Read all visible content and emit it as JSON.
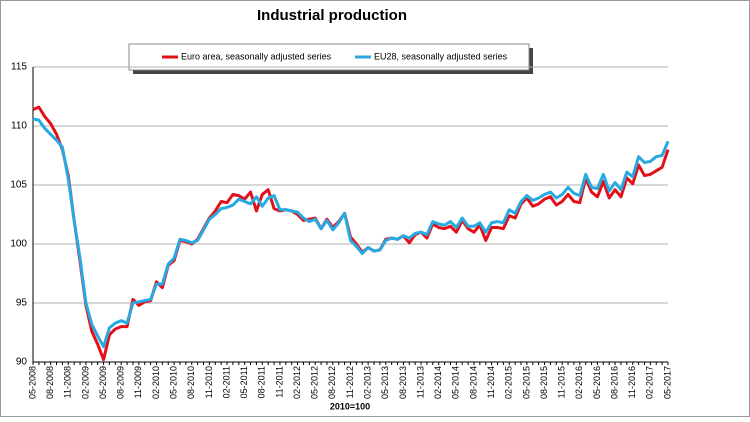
{
  "chart_data": {
    "type": "line",
    "title": "Industrial production",
    "x_label": "2010=100",
    "categories": [
      "05-2008",
      null,
      null,
      "08-2008",
      null,
      null,
      "11-2008",
      null,
      null,
      "02-2009",
      null,
      null,
      "05-2009",
      null,
      null,
      "08-2009",
      null,
      null,
      "11-2009",
      null,
      null,
      "02-2010",
      null,
      null,
      "05-2010",
      null,
      null,
      "08-2010",
      null,
      null,
      "11-2010",
      null,
      null,
      "02-2011",
      null,
      null,
      "05-2011",
      null,
      null,
      "08-2011",
      null,
      null,
      "11-2011",
      null,
      null,
      "02-2012",
      null,
      null,
      "05-2012",
      null,
      null,
      "08-2012",
      null,
      null,
      "11-2012",
      null,
      null,
      "02-2013",
      null,
      null,
      "05-2013",
      null,
      null,
      "08-2013",
      null,
      null,
      "11-2013",
      null,
      null,
      "02-2014",
      null,
      null,
      "05-2014",
      null,
      null,
      "08-2014",
      null,
      null,
      "11-2014",
      null,
      null,
      "02-2015",
      null,
      null,
      "05-2015",
      null,
      null,
      "08-2015",
      null,
      null,
      "11-2015",
      null,
      null,
      "02-2016",
      null,
      null,
      "05-2016",
      null,
      null,
      "08-2016",
      null,
      null,
      "11-2016",
      null,
      null,
      "02-2017",
      null,
      null,
      "05-2017"
    ],
    "series": [
      {
        "name": "Euro area, seasonally adjusted series",
        "color": "#e3101a",
        "values": [
          111.4,
          111.6,
          110.8,
          110.2,
          109.3,
          108.0,
          105.8,
          102.0,
          98.5,
          94.8,
          92.6,
          91.5,
          90.2,
          92.3,
          92.8,
          93.0,
          93.0,
          95.3,
          94.8,
          95.1,
          95.2,
          96.8,
          96.3,
          98.2,
          98.6,
          100.3,
          100.2,
          100.0,
          100.4,
          101.3,
          102.2,
          102.8,
          103.6,
          103.5,
          104.2,
          104.1,
          103.8,
          104.4,
          102.8,
          104.2,
          104.6,
          103.0,
          102.8,
          102.9,
          102.8,
          102.5,
          102.0,
          102.1,
          102.2,
          101.3,
          102.1,
          101.4,
          101.9,
          102.6,
          100.6,
          100.0,
          99.3,
          99.7,
          99.4,
          99.5,
          100.4,
          100.5,
          100.4,
          100.7,
          100.1,
          100.8,
          101.0,
          100.5,
          101.7,
          101.4,
          101.3,
          101.5,
          101.0,
          102.0,
          101.3,
          101.0,
          101.6,
          100.3,
          101.4,
          101.4,
          101.3,
          102.4,
          102.2,
          103.4,
          103.9,
          103.2,
          103.4,
          103.8,
          104.0,
          103.3,
          103.6,
          104.2,
          103.6,
          103.5,
          105.6,
          104.4,
          104.0,
          105.3,
          103.9,
          104.6,
          104.0,
          105.6,
          105.1,
          106.7,
          105.8,
          105.9,
          106.2,
          106.5,
          108.0
        ]
      },
      {
        "name": "EU28, seasonally adjusted series",
        "color": "#27a9e1",
        "values": [
          110.6,
          110.5,
          109.8,
          109.3,
          108.8,
          108.2,
          105.5,
          102.0,
          98.8,
          95.0,
          93.2,
          92.2,
          91.3,
          92.9,
          93.3,
          93.5,
          93.3,
          95.0,
          95.1,
          95.2,
          95.3,
          96.6,
          96.6,
          98.3,
          98.8,
          100.4,
          100.3,
          100.1,
          100.3,
          101.2,
          102.1,
          102.5,
          103.0,
          103.1,
          103.3,
          103.8,
          103.6,
          103.4,
          104.0,
          103.2,
          103.9,
          104.1,
          102.9,
          102.9,
          102.8,
          102.7,
          102.2,
          101.9,
          102.1,
          101.3,
          102.0,
          101.2,
          101.8,
          102.6,
          100.3,
          99.8,
          99.2,
          99.7,
          99.4,
          99.5,
          100.3,
          100.5,
          100.4,
          100.7,
          100.5,
          100.9,
          101.0,
          100.8,
          101.9,
          101.7,
          101.6,
          101.9,
          101.4,
          102.2,
          101.5,
          101.5,
          101.8,
          101.0,
          101.8,
          101.9,
          101.8,
          102.9,
          102.6,
          103.6,
          104.1,
          103.7,
          103.9,
          104.2,
          104.4,
          103.9,
          104.2,
          104.8,
          104.3,
          104.1,
          105.9,
          104.8,
          104.7,
          105.9,
          104.5,
          105.2,
          104.6,
          106.1,
          105.7,
          107.4,
          106.9,
          107.0,
          107.4,
          107.5,
          108.7
        ]
      }
    ],
    "ylim": [
      90,
      115
    ],
    "yticks": [
      90,
      95,
      100,
      105,
      110,
      115
    ],
    "grid": true
  }
}
